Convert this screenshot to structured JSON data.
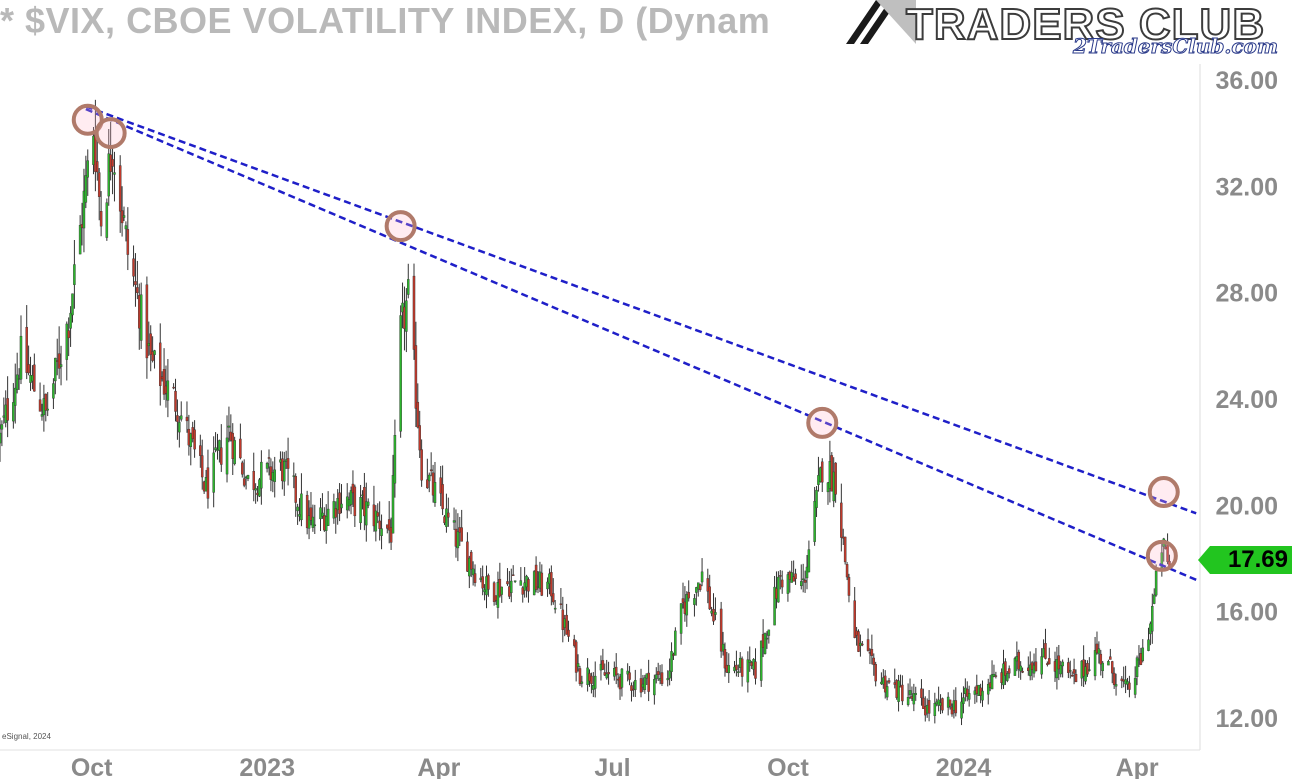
{
  "title": "* $VIX, CBOE VOLATILITY INDEX, D (Dynam",
  "logo": {
    "text": "TRADERS CLUB",
    "subtext": "2TradersClub.com"
  },
  "credit": "eSignal, 2024",
  "last_price_label": "17.69",
  "colors": {
    "up": "#2db52d",
    "down": "#c0392b",
    "trendline": "#1f1fc8",
    "marker": "#b07a6a",
    "price_tag": "#22c51f",
    "axis_text": "#8a8a8a"
  },
  "chart_data": {
    "type": "candlestick",
    "title": "$VIX, CBOE VOLATILITY INDEX, D",
    "ylim": [
      10.8,
      37.5
    ],
    "y_ticks": [
      12,
      16,
      20,
      24,
      28,
      32,
      36
    ],
    "y_tick_labels": [
      "12.00",
      "16.00",
      "20.00",
      "24.00",
      "28.00",
      "32.00",
      "36.00"
    ],
    "x_tick_labels": [
      {
        "date": "2022-10-01",
        "label": "Oct"
      },
      {
        "date": "2023-01-01",
        "label": "2023"
      },
      {
        "date": "2023-04-01",
        "label": "Apr"
      },
      {
        "date": "2023-07-01",
        "label": "Jul"
      },
      {
        "date": "2023-10-01",
        "label": "Oct"
      },
      {
        "date": "2024-01-01",
        "label": "2024"
      },
      {
        "date": "2024-04-01",
        "label": "Apr"
      }
    ],
    "x_range": [
      "2022-08-15",
      "2024-05-05"
    ],
    "last_price": 17.69,
    "closes_path": [
      [
        "2022-08-15",
        22.5
      ],
      [
        "2022-08-26",
        25.6
      ],
      [
        "2022-09-08",
        23.4
      ],
      [
        "2022-09-20",
        27.0
      ],
      [
        "2022-09-30",
        32.6
      ],
      [
        "2022-10-03",
        34.2
      ],
      [
        "2022-10-07",
        30.8
      ],
      [
        "2022-10-13",
        33.6
      ],
      [
        "2022-10-21",
        29.5
      ],
      [
        "2022-11-02",
        25.4
      ],
      [
        "2022-11-16",
        23.8
      ],
      [
        "2022-12-01",
        20.6
      ],
      [
        "2022-12-13",
        22.8
      ],
      [
        "2022-12-23",
        20.9
      ],
      [
        "2023-01-10",
        21.4
      ],
      [
        "2023-01-25",
        19.2
      ],
      [
        "2023-02-10",
        20.3
      ],
      [
        "2023-02-24",
        19.8
      ],
      [
        "2023-03-08",
        19.0
      ],
      [
        "2023-03-13",
        26.5
      ],
      [
        "2023-03-17",
        27.8
      ],
      [
        "2023-03-24",
        21.5
      ],
      [
        "2023-04-10",
        18.9
      ],
      [
        "2023-04-28",
        16.8
      ],
      [
        "2023-05-15",
        17.2
      ],
      [
        "2023-05-31",
        16.9
      ],
      [
        "2023-06-15",
        13.7
      ],
      [
        "2023-06-30",
        13.6
      ],
      [
        "2023-07-15",
        13.3
      ],
      [
        "2023-07-31",
        13.6
      ],
      [
        "2023-08-08",
        16.2
      ],
      [
        "2023-08-18",
        17.4
      ],
      [
        "2023-08-31",
        13.9
      ],
      [
        "2023-09-15",
        13.8
      ],
      [
        "2023-09-28",
        17.3
      ],
      [
        "2023-10-10",
        17.0
      ],
      [
        "2023-10-20",
        21.5
      ],
      [
        "2023-10-27",
        21.0
      ],
      [
        "2023-11-06",
        14.9
      ],
      [
        "2023-11-20",
        13.4
      ],
      [
        "2023-12-05",
        12.8
      ],
      [
        "2023-12-15",
        12.3
      ],
      [
        "2023-12-29",
        12.5
      ],
      [
        "2024-01-15",
        13.3
      ],
      [
        "2024-01-31",
        14.0
      ],
      [
        "2024-02-15",
        14.3
      ],
      [
        "2024-02-29",
        13.4
      ],
      [
        "2024-03-12",
        14.5
      ],
      [
        "2024-03-28",
        13.0
      ],
      [
        "2024-04-04",
        14.2
      ],
      [
        "2024-04-09",
        15.6
      ],
      [
        "2024-04-15",
        18.5
      ],
      [
        "2024-04-19",
        17.69
      ]
    ],
    "trendlines": [
      {
        "style": "dashed",
        "from": [
          "2022-09-29",
          35.0
        ],
        "to": [
          "2024-05-03",
          19.7
        ]
      },
      {
        "style": "dashed",
        "from": [
          "2022-09-29",
          34.9
        ],
        "to": [
          "2024-05-03",
          17.2
        ]
      }
    ],
    "circled_points": [
      [
        "2022-09-30",
        34.5
      ],
      [
        "2022-10-12",
        34.0
      ],
      [
        "2023-03-13",
        30.5
      ],
      [
        "2023-10-20",
        23.1
      ],
      [
        "2024-04-16",
        20.5
      ],
      [
        "2024-04-15",
        18.1
      ]
    ]
  }
}
